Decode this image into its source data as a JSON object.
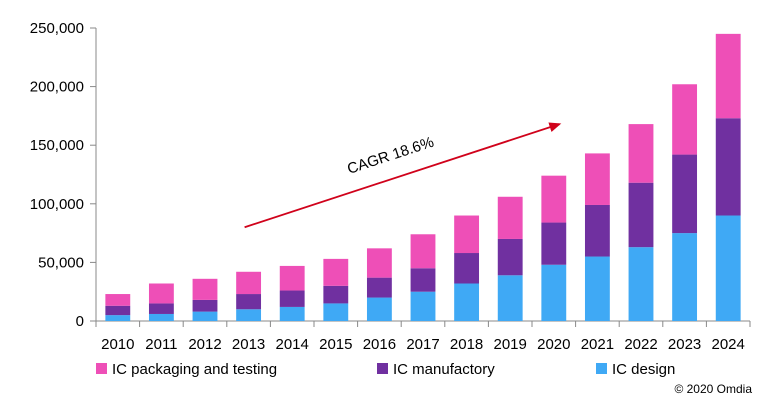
{
  "chart_data": {
    "type": "bar",
    "stacked": true,
    "title": "",
    "xlabel": "",
    "ylabel": "",
    "ylim": [
      0,
      250000
    ],
    "y_ticks": [
      "0",
      "50,000",
      "100,000",
      "150,000",
      "200,000",
      "250,000"
    ],
    "y_tick_values": [
      0,
      50000,
      100000,
      150000,
      200000,
      250000
    ],
    "grid": false,
    "legend_position": "bottom",
    "categories": [
      "2010",
      "2011",
      "2012",
      "2013",
      "2014",
      "2015",
      "2016",
      "2017",
      "2018",
      "2019",
      "2020",
      "2021",
      "2022",
      "2023",
      "2024"
    ],
    "series": [
      {
        "name": "IC design",
        "color": "#3FA9F5",
        "values": [
          5000,
          6000,
          8000,
          10000,
          12000,
          15000,
          20000,
          25000,
          32000,
          39000,
          48000,
          55000,
          63000,
          75000,
          90000
        ]
      },
      {
        "name": "IC manufactory",
        "color": "#7030A0",
        "values": [
          8000,
          9000,
          10000,
          13000,
          14000,
          15000,
          17000,
          20000,
          26000,
          31000,
          36000,
          44000,
          55000,
          67000,
          83000
        ]
      },
      {
        "name": "IC packaging and testing",
        "color": "#EE4FB7",
        "values": [
          10000,
          17000,
          18000,
          19000,
          21000,
          23000,
          25000,
          29000,
          32000,
          36000,
          40000,
          44000,
          50000,
          60000,
          72000
        ]
      }
    ],
    "legend_order": [
      "IC packaging and testing",
      "IC manufactory",
      "IC design"
    ],
    "annotation": {
      "text": "CAGR 18.6%",
      "arrow_color": "#D0021B",
      "arrow_from": {
        "category": "2013",
        "value": 80000
      },
      "arrow_to": {
        "category": "2021",
        "value": 168000
      }
    },
    "copyright": "© 2020 Omdia"
  }
}
